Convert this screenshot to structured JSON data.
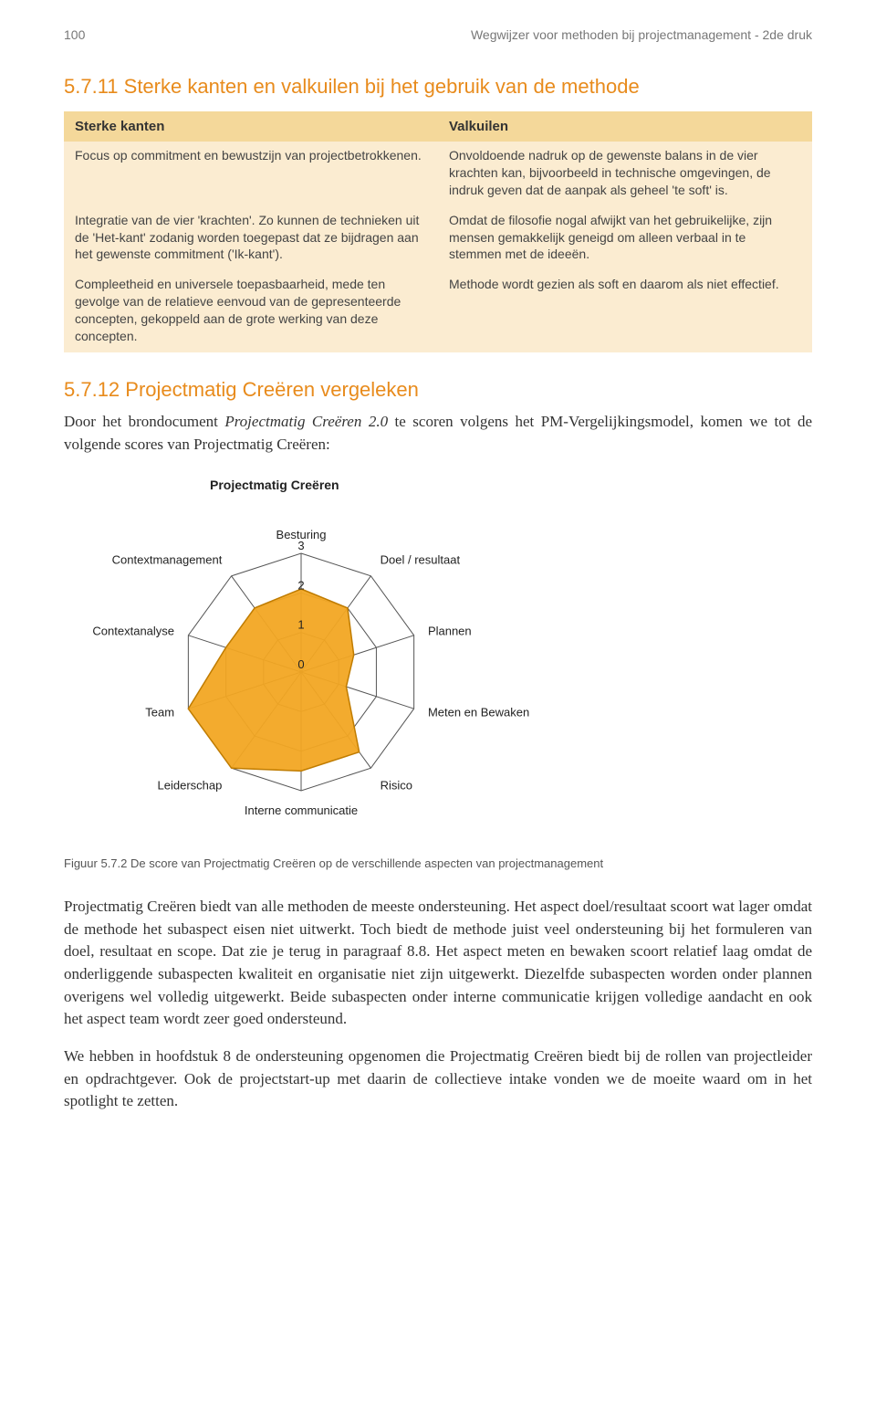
{
  "runningHead": {
    "pageNumber": "100",
    "title": "Wegwijzer voor methoden bij projectmanagement - 2de druk"
  },
  "section511": {
    "heading": "5.7.11 Sterke kanten en valkuilen bij het gebruik van de methode",
    "col1Header": "Sterke kanten",
    "col2Header": "Valkuilen",
    "rows": [
      {
        "left": "Focus op commitment en bewustzijn van projectbetrokkenen.",
        "right": "Onvoldoende nadruk op de gewenste balans in de vier krachten kan, bijvoorbeeld in technische omgevingen, de indruk geven dat de aanpak als geheel 'te soft' is."
      },
      {
        "left": "Integratie van de vier 'krachten'. Zo kunnen de technieken uit de 'Het-kant' zodanig worden toegepast dat ze bijdragen aan het gewenste commitment ('Ik-kant').",
        "right": "Omdat de filosofie nogal afwijkt van het gebruikelijke, zijn mensen gemakkelijk geneigd om alleen verbaal in te stemmen met de ideeën."
      },
      {
        "left": "Compleetheid en universele toepasbaarheid, mede ten gevolge van de relatieve eenvoud van de gepresenteerde concepten, gekoppeld aan de grote werking van deze concepten.",
        "right": "Methode wordt gezien als soft en daarom als niet effectief."
      }
    ]
  },
  "section512": {
    "heading": "5.7.12 Projectmatig Creëren vergeleken",
    "para1_a": "Door het brondocument ",
    "para1_ital": "Projectmatig Creëren 2.0",
    "para1_b": " te scoren volgens het PM-Vergelijkingsmodel, komen we tot de volgende scores van Projectmatig Creëren:"
  },
  "radar": {
    "title": "Projectmatig Creëren",
    "max": 3,
    "axisLabels": [
      "Besturing",
      "Doel / resultaat",
      "Plannen",
      "Meten en Bewaken",
      "Risico",
      "Interne communicatie",
      "Leiderschap",
      "Team",
      "Contextanalyse",
      "Contextmanagement"
    ],
    "values": [
      2.1,
      2.0,
      1.4,
      1.2,
      2.5,
      2.5,
      3.0,
      3.0,
      2.0,
      2.0
    ],
    "tickLabels": [
      "0",
      "1",
      "2",
      "3"
    ],
    "fillColor": "#f2a723",
    "fillOpacity": 0.95,
    "strokeColor": "#c07c00",
    "gridColor": "#555555",
    "labelFontSize": 13
  },
  "figureCaption": "Figuur 5.7.2   De score van Projectmatig Creëren op de verschillende aspecten van projectmanagement",
  "para2": "Projectmatig Creëren biedt van alle methoden de meeste ondersteuning. Het aspect doel/resultaat scoort wat lager omdat de methode het subaspect eisen niet uitwerkt. Toch biedt de methode juist veel ondersteuning bij het formuleren van doel, resultaat en scope. Dat zie je terug in paragraaf 8.8. Het aspect meten en bewaken scoort relatief laag omdat de onderliggende subaspecten kwaliteit en organisatie niet zijn uitgewerkt. Diezelfde subaspecten worden onder plannen overigens wel volledig uitgewerkt. Beide subaspecten onder interne communicatie krijgen volledige aandacht en ook het aspect team wordt zeer goed ondersteund.",
  "para3": "We hebben in hoofdstuk 8 de ondersteuning opgenomen die Projectmatig Creëren biedt bij de rollen van projectleider en opdrachtgever. Ook de projectstart-up met daarin de collectieve intake vonden we de moeite waard om in het spotlight te zetten."
}
